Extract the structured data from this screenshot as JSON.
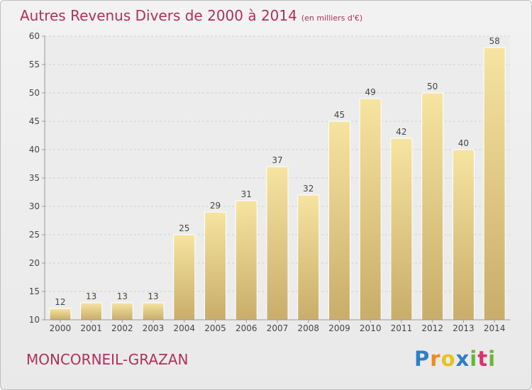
{
  "title": "Autres Revenus Divers de 2000 à 2014",
  "subtitle": "(en milliers d'€)",
  "commune": "MONCORNEIL-GRAZAN",
  "logo": {
    "letters": [
      "P",
      "r",
      "o",
      "x",
      "i",
      "t",
      "i"
    ]
  },
  "colors": {
    "title": "#b0305a",
    "bar_top": "#f6e4a0",
    "bar_bottom": "#c9ad6a",
    "logo": [
      "#2f7ec8",
      "#f08a1c",
      "#e7c21a",
      "#2f7ec8",
      "#6ab53a",
      "#e0306a",
      "#6ab53a"
    ]
  },
  "chart_data": {
    "type": "bar",
    "categories": [
      "2000",
      "2001",
      "2002",
      "2003",
      "2004",
      "2005",
      "2006",
      "2007",
      "2008",
      "2009",
      "2010",
      "2011",
      "2012",
      "2013",
      "2014"
    ],
    "values": [
      12,
      13,
      13,
      13,
      25,
      29,
      31,
      37,
      32,
      45,
      49,
      42,
      50,
      40,
      58
    ],
    "ylim": [
      10,
      60
    ],
    "yticks": [
      10,
      15,
      20,
      25,
      30,
      35,
      40,
      45,
      50,
      55,
      60
    ],
    "grid": true,
    "data_labels": true
  }
}
